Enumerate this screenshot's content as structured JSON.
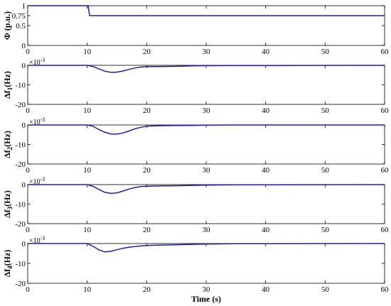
{
  "figure": {
    "xlabel": "Time (s)",
    "line_color": "#1f1fa8"
  },
  "chart_data": [
    {
      "type": "line",
      "ylabel": "Φ (p.u.)",
      "exponent": "",
      "xlim": [
        0,
        60
      ],
      "ylim": [
        0,
        1
      ],
      "xticks": [
        "0",
        "10",
        "20",
        "30",
        "40",
        "50",
        "60"
      ],
      "yticks": [
        {
          "value": 0,
          "label": "0"
        },
        {
          "value": 0.5,
          "label": "0.5"
        },
        {
          "value": 0.75,
          "label": "0.75"
        },
        {
          "value": 1,
          "label": "1"
        }
      ],
      "series": [
        {
          "x": [
            0,
            10.2,
            10.2,
            10.4,
            60
          ],
          "y": [
            1,
            1,
            0.95,
            0.75,
            0.75
          ]
        }
      ]
    },
    {
      "type": "line",
      "ylabel_main": "Δf",
      "ylabel_sub": "1",
      "ylabel_unit": "(Hz)",
      "exponent_base": "×10",
      "exponent_power": "-3",
      "xlim": [
        0,
        60
      ],
      "ylim": [
        -20,
        0
      ],
      "xticks": [
        "0",
        "10",
        "20",
        "30",
        "40",
        "50",
        "60"
      ],
      "yticks": [
        {
          "value": 0,
          "label": "0"
        },
        {
          "value": -10,
          "label": "-10"
        },
        {
          "value": -20,
          "label": "-20"
        }
      ],
      "series": [
        {
          "x": [
            0,
            10,
            11,
            12,
            13,
            14,
            15,
            16,
            17,
            18,
            19,
            20,
            22,
            25,
            28,
            30,
            35,
            60
          ],
          "y": [
            0,
            0,
            -0.6,
            -1.9,
            -3.0,
            -3.6,
            -3.5,
            -2.9,
            -2.1,
            -1.4,
            -0.9,
            -0.6,
            -0.6,
            -0.5,
            -0.3,
            -0.2,
            -0.1,
            0
          ]
        }
      ]
    },
    {
      "type": "line",
      "ylabel_main": "Δf",
      "ylabel_sub": "2",
      "ylabel_unit": "(Hz)",
      "exponent_base": "×10",
      "exponent_power": "-3",
      "xlim": [
        0,
        60
      ],
      "ylim": [
        -20,
        0
      ],
      "xticks": [
        "0",
        "10",
        "20",
        "30",
        "40",
        "50",
        "60"
      ],
      "yticks": [
        {
          "value": 0,
          "label": "0"
        },
        {
          "value": -10,
          "label": "-10"
        },
        {
          "value": -20,
          "label": "-20"
        }
      ],
      "series": [
        {
          "x": [
            0,
            10,
            11,
            12,
            13,
            14,
            15,
            16,
            17,
            18,
            19,
            20,
            22,
            25,
            28,
            30,
            35,
            60
          ],
          "y": [
            0,
            0,
            -0.7,
            -2.4,
            -3.8,
            -4.6,
            -4.7,
            -4.1,
            -3.1,
            -2.0,
            -1.2,
            -0.6,
            -0.4,
            -0.3,
            -0.2,
            -0.1,
            0,
            0
          ]
        }
      ]
    },
    {
      "type": "line",
      "ylabel_main": "Δf",
      "ylabel_sub": "3",
      "ylabel_unit": "(Hz)",
      "exponent_base": "×10",
      "exponent_power": "-3",
      "xlim": [
        0,
        60
      ],
      "ylim": [
        -20,
        0
      ],
      "xticks": [
        "0",
        "10",
        "20",
        "30",
        "40",
        "50",
        "60"
      ],
      "yticks": [
        {
          "value": 0,
          "label": "0"
        },
        {
          "value": -10,
          "label": "-10"
        },
        {
          "value": -20,
          "label": "-20"
        }
      ],
      "series": [
        {
          "x": [
            0,
            10,
            11,
            12,
            13,
            14,
            15,
            16,
            17,
            18,
            19,
            20,
            22,
            25,
            28,
            30,
            35,
            60
          ],
          "y": [
            0,
            0,
            -0.9,
            -2.6,
            -4.0,
            -4.5,
            -4.2,
            -3.3,
            -2.3,
            -1.5,
            -1.0,
            -0.8,
            -0.7,
            -0.6,
            -0.4,
            -0.3,
            -0.1,
            0
          ]
        }
      ]
    },
    {
      "type": "line",
      "ylabel_main": "Δf",
      "ylabel_sub": "4",
      "ylabel_unit": "(Hz)",
      "exponent_base": "×10",
      "exponent_power": "-3",
      "xlim": [
        0,
        60
      ],
      "ylim": [
        -20,
        0
      ],
      "xticks": [
        "0",
        "10",
        "20",
        "30",
        "40",
        "50",
        "60"
      ],
      "yticks": [
        {
          "value": 0,
          "label": "0"
        },
        {
          "value": -10,
          "label": "-10"
        },
        {
          "value": -20,
          "label": "-20"
        }
      ],
      "series": [
        {
          "x": [
            0,
            10,
            11,
            12,
            13,
            14,
            15,
            16,
            17,
            18,
            19,
            20,
            22,
            25,
            28,
            30,
            35,
            60
          ],
          "y": [
            0,
            0,
            -1.4,
            -3.3,
            -4.2,
            -3.9,
            -3.1,
            -2.4,
            -1.9,
            -1.5,
            -1.2,
            -1.0,
            -0.8,
            -0.6,
            -0.4,
            -0.3,
            -0.1,
            0
          ]
        }
      ]
    }
  ]
}
